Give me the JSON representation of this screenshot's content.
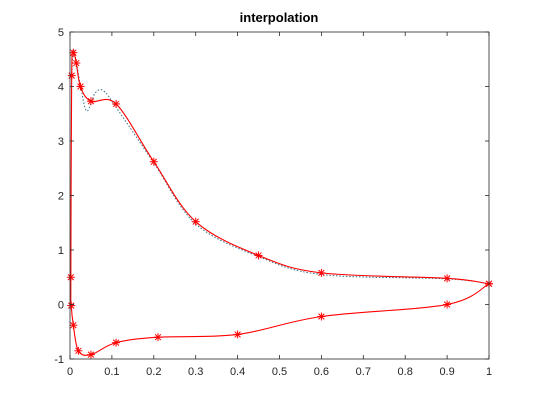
{
  "chart_data": {
    "type": "line",
    "title": "interpolation",
    "xlabel": "",
    "ylabel": "",
    "xlim": [
      0,
      1
    ],
    "ylim": [
      -1,
      5
    ],
    "xticks": [
      0,
      0.1,
      0.2,
      0.3,
      0.4,
      0.5,
      0.6,
      0.7,
      0.8,
      0.9,
      1
    ],
    "xtick_labels": [
      "0",
      "0.1",
      "0.2",
      "0.3",
      "0.4",
      "0.5",
      "0.6",
      "0.7",
      "0.8",
      "0.9",
      "1"
    ],
    "yticks": [
      -1,
      0,
      1,
      2,
      3,
      4,
      5
    ],
    "ytick_labels": [
      "-1",
      "0",
      "1",
      "2",
      "3",
      "4",
      "5"
    ],
    "grid": false,
    "series": [
      {
        "style": "dotted",
        "color": "#2e6f86",
        "x": [
          1.0,
          0.9,
          0.6,
          0.45,
          0.3,
          0.2,
          0.11,
          0.08,
          0.06,
          0.04,
          0.025,
          0.015,
          0.008,
          0.004
        ],
        "y": [
          0.38,
          0.47,
          0.55,
          0.88,
          1.48,
          2.6,
          3.62,
          3.92,
          3.88,
          3.55,
          4.02,
          4.45,
          4.65,
          4.2
        ]
      },
      {
        "style": "solid",
        "color": "#ff0000",
        "marker": "*",
        "x": [
          1.0,
          0.9,
          0.6,
          0.45,
          0.3,
          0.2,
          0.11,
          0.05,
          0.025,
          0.015,
          0.008,
          0.004,
          0.002,
          0.003,
          0.008,
          0.02,
          0.05,
          0.11,
          0.21,
          0.4,
          0.6,
          0.9,
          1.0
        ],
        "y": [
          0.38,
          0.48,
          0.58,
          0.9,
          1.52,
          2.62,
          3.68,
          3.73,
          4.0,
          4.43,
          4.62,
          4.2,
          0.5,
          -0.02,
          -0.38,
          -0.85,
          -0.92,
          -0.7,
          -0.6,
          -0.55,
          -0.22,
          0.0,
          0.38
        ]
      }
    ]
  },
  "colors": {
    "axes": "#262626",
    "solid_line": "#ff0000",
    "dotted_line": "#2e6f86"
  }
}
